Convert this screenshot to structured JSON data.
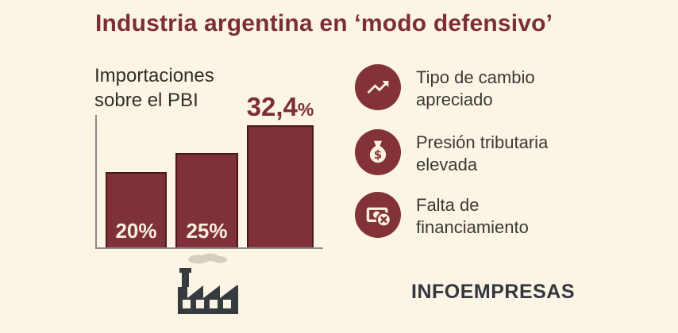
{
  "title": "Industria argentina en ‘modo defensivo’",
  "colors": {
    "background": "#fcf4e4",
    "maroon": "#7e3138",
    "bar_border": "#44191d",
    "charcoal": "#343740",
    "smoke": "#d6cfbf",
    "inside_label": "#f8eedb"
  },
  "chart_data": {
    "type": "bar",
    "title": "Importaciones sobre el PBI",
    "categories": [
      "",
      "",
      ""
    ],
    "values": [
      20,
      25,
      32.4
    ],
    "labels": [
      "20%",
      "25%",
      "32,4%"
    ],
    "top_label": {
      "number": "32,4",
      "suffix": "%"
    },
    "ylim": [
      0,
      35
    ],
    "grid": false,
    "legend": false,
    "bar_color": "#7e3138",
    "xlabel": "",
    "ylabel": ""
  },
  "factors": [
    {
      "icon": "trending-up-icon",
      "lines": [
        "Tipo de cambio",
        "apreciado"
      ]
    },
    {
      "icon": "money-bag-icon",
      "lines": [
        "Presión tributaria",
        "elevada"
      ]
    },
    {
      "icon": "money-crossed-icon",
      "lines": [
        "Falta de",
        "financiamiento"
      ]
    }
  ],
  "footer": {
    "brand": "INFOEMPRESAS"
  }
}
